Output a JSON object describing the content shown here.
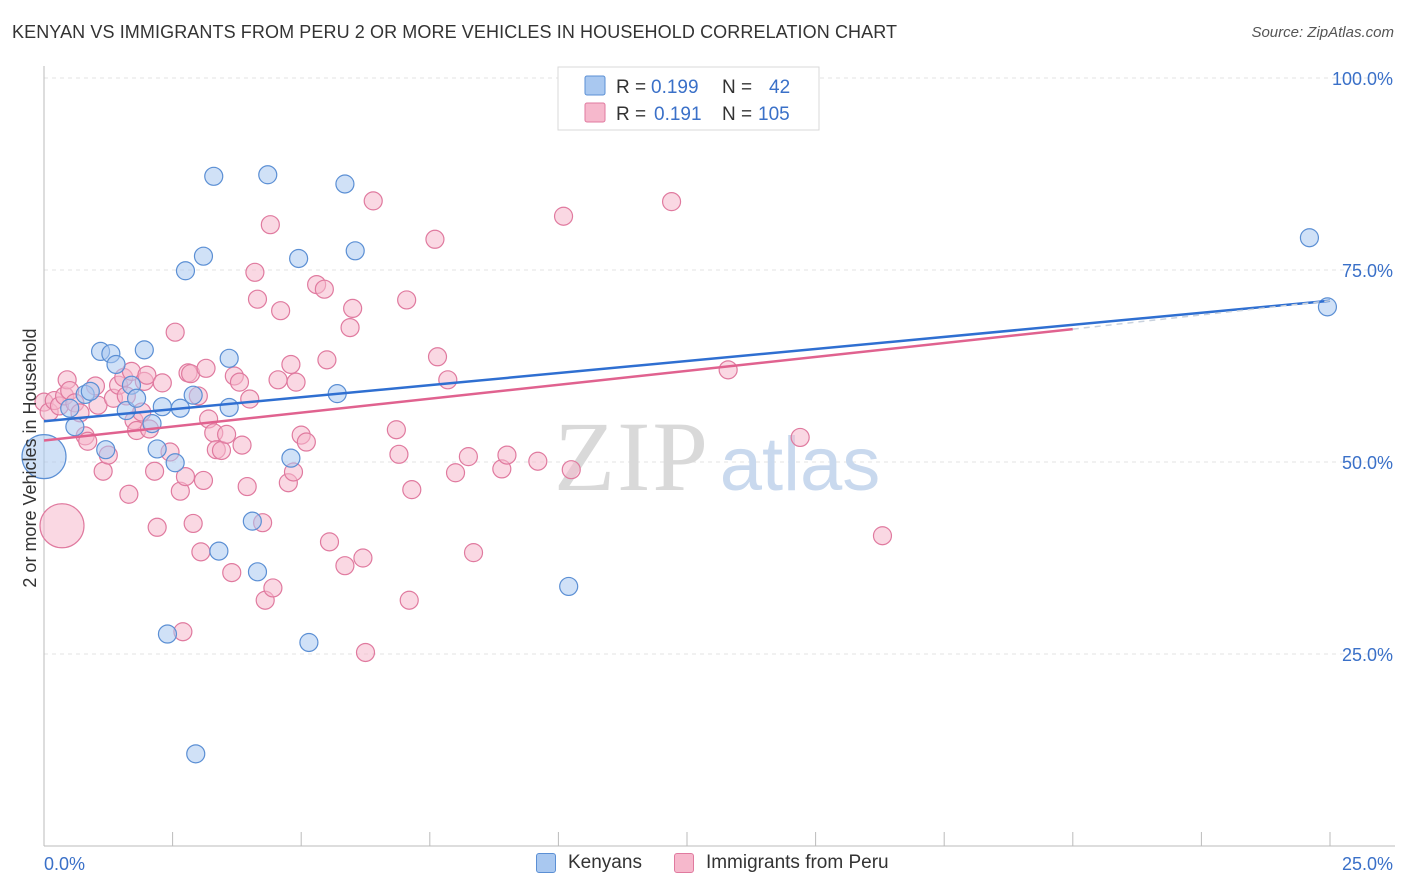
{
  "title": "KENYAN VS IMMIGRANTS FROM PERU 2 OR MORE VEHICLES IN HOUSEHOLD CORRELATION CHART",
  "source": "Source: ZipAtlas.com",
  "watermark": {
    "zip": "ZIP",
    "atlas": "atlas"
  },
  "colors": {
    "blue_fill": "#a9c8f0",
    "blue_stroke": "#5b8fd4",
    "blue_line": "#2f6fd1",
    "pink_fill": "#f6b8cc",
    "pink_stroke": "#e07a9f",
    "pink_line": "#e0628f",
    "value_text": "#3a70c8"
  },
  "stats_legend": [
    {
      "r_label": "R = ",
      "r_value": "0.199",
      "n_label": "N = ",
      "n_value": "42"
    },
    {
      "r_label": "R = ",
      "r_value": "0.191",
      "n_label": "N = ",
      "n_value": "105"
    }
  ],
  "chart_data": {
    "type": "scatter",
    "title": "KENYAN VS IMMIGRANTS FROM PERU 2 OR MORE VEHICLES IN HOUSEHOLD CORRELATION CHART",
    "xlabel": "",
    "ylabel": "2 or more Vehicles in Household",
    "xlim": [
      0,
      25
    ],
    "ylim": [
      0,
      100
    ],
    "x_tick_labels": [
      {
        "value": 0,
        "label": "0.0%"
      },
      {
        "value": 25,
        "label": "25.0%"
      }
    ],
    "y_tick_labels": [
      {
        "value": 25,
        "label": "25.0%"
      },
      {
        "value": 50,
        "label": "50.0%"
      },
      {
        "value": 75,
        "label": "75.0%"
      },
      {
        "value": 100,
        "label": "100.0%"
      }
    ],
    "series": [
      {
        "name": "Kenyans",
        "points": [
          {
            "x": 0.0,
            "y": 50.7,
            "big": true
          },
          {
            "x": 0.5,
            "y": 57.0
          },
          {
            "x": 0.6,
            "y": 54.6
          },
          {
            "x": 0.8,
            "y": 58.8
          },
          {
            "x": 0.9,
            "y": 59.2
          },
          {
            "x": 1.1,
            "y": 64.4
          },
          {
            "x": 1.2,
            "y": 51.6
          },
          {
            "x": 1.3,
            "y": 64.1
          },
          {
            "x": 1.4,
            "y": 62.7
          },
          {
            "x": 1.6,
            "y": 56.7
          },
          {
            "x": 1.7,
            "y": 60.0
          },
          {
            "x": 1.8,
            "y": 58.3
          },
          {
            "x": 1.95,
            "y": 64.6
          },
          {
            "x": 2.1,
            "y": 55.0
          },
          {
            "x": 2.2,
            "y": 51.7
          },
          {
            "x": 2.3,
            "y": 57.2
          },
          {
            "x": 2.4,
            "y": 27.6
          },
          {
            "x": 2.55,
            "y": 49.9
          },
          {
            "x": 2.65,
            "y": 57.0
          },
          {
            "x": 2.75,
            "y": 74.9
          },
          {
            "x": 2.9,
            "y": 58.7
          },
          {
            "x": 2.95,
            "y": 12.0
          },
          {
            "x": 3.1,
            "y": 76.8
          },
          {
            "x": 3.3,
            "y": 87.2
          },
          {
            "x": 3.4,
            "y": 38.4
          },
          {
            "x": 3.6,
            "y": 63.5
          },
          {
            "x": 3.6,
            "y": 57.1
          },
          {
            "x": 4.05,
            "y": 42.3
          },
          {
            "x": 4.15,
            "y": 35.7
          },
          {
            "x": 4.35,
            "y": 87.4
          },
          {
            "x": 4.8,
            "y": 50.5
          },
          {
            "x": 4.95,
            "y": 76.5
          },
          {
            "x": 5.15,
            "y": 26.5
          },
          {
            "x": 5.7,
            "y": 58.9
          },
          {
            "x": 5.85,
            "y": 86.2
          },
          {
            "x": 6.05,
            "y": 77.5
          },
          {
            "x": 10.2,
            "y": 33.8
          },
          {
            "x": 24.6,
            "y": 79.2
          },
          {
            "x": 24.95,
            "y": 70.2
          }
        ]
      },
      {
        "name": "Immigrants from Peru",
        "points": [
          {
            "x": 0.0,
            "y": 57.8
          },
          {
            "x": 0.1,
            "y": 56.5
          },
          {
            "x": 0.2,
            "y": 58.0
          },
          {
            "x": 0.3,
            "y": 57.3
          },
          {
            "x": 0.35,
            "y": 41.7,
            "big": true
          },
          {
            "x": 0.4,
            "y": 58.6
          },
          {
            "x": 0.45,
            "y": 60.7
          },
          {
            "x": 0.5,
            "y": 59.3
          },
          {
            "x": 0.6,
            "y": 57.7
          },
          {
            "x": 0.7,
            "y": 56.4
          },
          {
            "x": 0.8,
            "y": 53.4
          },
          {
            "x": 0.85,
            "y": 52.7
          },
          {
            "x": 1.0,
            "y": 59.9
          },
          {
            "x": 1.05,
            "y": 57.4
          },
          {
            "x": 1.15,
            "y": 48.8
          },
          {
            "x": 1.25,
            "y": 50.9
          },
          {
            "x": 1.35,
            "y": 58.3
          },
          {
            "x": 1.45,
            "y": 60.0
          },
          {
            "x": 1.55,
            "y": 61.0
          },
          {
            "x": 1.6,
            "y": 58.6
          },
          {
            "x": 1.65,
            "y": 45.8
          },
          {
            "x": 1.7,
            "y": 61.8
          },
          {
            "x": 1.75,
            "y": 55.4
          },
          {
            "x": 1.8,
            "y": 54.1
          },
          {
            "x": 1.9,
            "y": 56.5
          },
          {
            "x": 1.95,
            "y": 60.5
          },
          {
            "x": 2.0,
            "y": 61.3
          },
          {
            "x": 2.05,
            "y": 54.3
          },
          {
            "x": 2.15,
            "y": 48.8
          },
          {
            "x": 2.2,
            "y": 41.5
          },
          {
            "x": 2.3,
            "y": 60.3
          },
          {
            "x": 2.45,
            "y": 51.3
          },
          {
            "x": 2.55,
            "y": 66.9
          },
          {
            "x": 2.65,
            "y": 46.2
          },
          {
            "x": 2.7,
            "y": 27.9
          },
          {
            "x": 2.75,
            "y": 48.1
          },
          {
            "x": 2.8,
            "y": 61.6
          },
          {
            "x": 2.85,
            "y": 61.5
          },
          {
            "x": 2.9,
            "y": 42.0
          },
          {
            "x": 3.0,
            "y": 58.6
          },
          {
            "x": 3.05,
            "y": 38.3
          },
          {
            "x": 3.1,
            "y": 47.6
          },
          {
            "x": 3.15,
            "y": 62.2
          },
          {
            "x": 3.2,
            "y": 55.6
          },
          {
            "x": 3.3,
            "y": 53.8
          },
          {
            "x": 3.35,
            "y": 51.6
          },
          {
            "x": 3.45,
            "y": 51.5
          },
          {
            "x": 3.55,
            "y": 53.6
          },
          {
            "x": 3.65,
            "y": 35.6
          },
          {
            "x": 3.7,
            "y": 61.2
          },
          {
            "x": 3.8,
            "y": 60.4
          },
          {
            "x": 3.85,
            "y": 52.2
          },
          {
            "x": 3.95,
            "y": 46.8
          },
          {
            "x": 4.0,
            "y": 58.2
          },
          {
            "x": 4.1,
            "y": 74.7
          },
          {
            "x": 4.15,
            "y": 71.2
          },
          {
            "x": 4.25,
            "y": 42.1
          },
          {
            "x": 4.3,
            "y": 32.0
          },
          {
            "x": 4.4,
            "y": 80.9
          },
          {
            "x": 4.45,
            "y": 33.6
          },
          {
            "x": 4.55,
            "y": 60.7
          },
          {
            "x": 4.6,
            "y": 69.7
          },
          {
            "x": 4.75,
            "y": 47.3
          },
          {
            "x": 4.8,
            "y": 62.7
          },
          {
            "x": 4.85,
            "y": 48.7
          },
          {
            "x": 4.9,
            "y": 60.4
          },
          {
            "x": 5.0,
            "y": 53.5
          },
          {
            "x": 5.1,
            "y": 52.6
          },
          {
            "x": 5.3,
            "y": 73.1
          },
          {
            "x": 5.45,
            "y": 72.5
          },
          {
            "x": 5.5,
            "y": 63.3
          },
          {
            "x": 5.55,
            "y": 39.6
          },
          {
            "x": 5.85,
            "y": 36.5
          },
          {
            "x": 5.95,
            "y": 67.5
          },
          {
            "x": 6.0,
            "y": 70.0
          },
          {
            "x": 6.2,
            "y": 37.5
          },
          {
            "x": 6.25,
            "y": 25.2
          },
          {
            "x": 6.4,
            "y": 84.0
          },
          {
            "x": 6.85,
            "y": 54.2
          },
          {
            "x": 6.9,
            "y": 51.0
          },
          {
            "x": 7.05,
            "y": 71.1
          },
          {
            "x": 7.1,
            "y": 32.0
          },
          {
            "x": 7.15,
            "y": 46.4
          },
          {
            "x": 7.6,
            "y": 79.0
          },
          {
            "x": 7.65,
            "y": 63.7
          },
          {
            "x": 7.85,
            "y": 60.7
          },
          {
            "x": 8.0,
            "y": 48.6
          },
          {
            "x": 8.25,
            "y": 50.7
          },
          {
            "x": 8.35,
            "y": 38.2
          },
          {
            "x": 8.9,
            "y": 49.1
          },
          {
            "x": 9.0,
            "y": 50.9
          },
          {
            "x": 9.6,
            "y": 50.1
          },
          {
            "x": 10.1,
            "y": 82.0
          },
          {
            "x": 10.25,
            "y": 49.0
          },
          {
            "x": 12.2,
            "y": 83.9
          },
          {
            "x": 13.3,
            "y": 62.0
          },
          {
            "x": 14.7,
            "y": 53.2
          },
          {
            "x": 16.3,
            "y": 40.4
          }
        ]
      }
    ],
    "trend_lines": [
      {
        "series": "Kenyans",
        "x": [
          0,
          25
        ],
        "y": [
          55.3,
          71.0
        ]
      },
      {
        "series": "Immigrants from Peru",
        "x": [
          0,
          20
        ],
        "y": [
          52.8,
          67.3
        ],
        "dashed_extension_to": [
          25,
          71.0
        ]
      }
    ],
    "grid": true,
    "legend_placement": "bottom-center"
  },
  "bottom_legend": [
    {
      "label": "Kenyans"
    },
    {
      "label": "Immigrants from Peru"
    }
  ]
}
